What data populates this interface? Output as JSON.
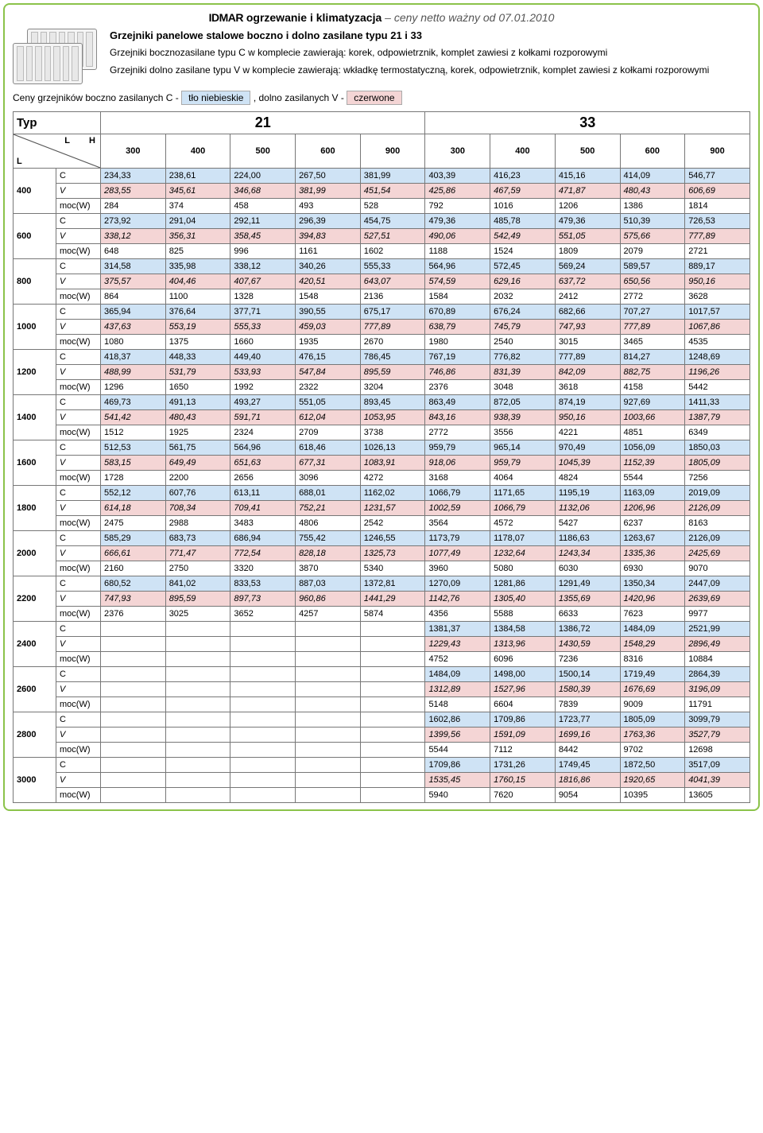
{
  "header": {
    "brand": "IDMAR",
    "subtitle": "ogrzewanie i klimatyzacja",
    "pricenote": "– ceny netto  ważny od 07.01.2010"
  },
  "intro": {
    "title": "Grzejniki panelowe stalowe boczno i dolno zasilane typu 21 i 33",
    "p1": "Grzejniki bocznozasilane typu C w komplecie zawierają: korek, odpowietrznik, komplet zawiesi z kołkami rozporowymi",
    "p2": "Grzejniki dolno zasilane typu V w komplecie zawierają: wkładkę termostatyczną, korek, odpowietrznik, komplet zawiesi z kołkami rozporowymi"
  },
  "legend": {
    "prefix": "Ceny grzejników boczno zasilanych C -",
    "blue": "tło niebieskie",
    "mid": ", dolno zasilanych V -",
    "red": "czerwone"
  },
  "table": {
    "TypLabel": "Typ",
    "group1": "21",
    "group2": "33",
    "LHlabel": {
      "L1": "L",
      "H": "H",
      "L2": "L"
    },
    "heights": [
      "300",
      "400",
      "500",
      "600",
      "900",
      "300",
      "400",
      "500",
      "600",
      "900"
    ],
    "rowlabels": {
      "C": "C",
      "V": "V",
      "M": "moc(W)"
    },
    "lengths": [
      "400",
      "600",
      "800",
      "1000",
      "1200",
      "1400",
      "1600",
      "1800",
      "2000",
      "2200",
      "2400",
      "2600",
      "2800",
      "3000"
    ],
    "rows": {
      "400": {
        "C": [
          "234,33",
          "238,61",
          "224,00",
          "267,50",
          "381,99",
          "403,39",
          "416,23",
          "415,16",
          "414,09",
          "546,77"
        ],
        "V": [
          "283,55",
          "345,61",
          "346,68",
          "381,99",
          "451,54",
          "425,86",
          "467,59",
          "471,87",
          "480,43",
          "606,69"
        ],
        "M": [
          "284",
          "374",
          "458",
          "493",
          "528",
          "792",
          "1016",
          "1206",
          "1386",
          "1814"
        ]
      },
      "600": {
        "C": [
          "273,92",
          "291,04",
          "292,11",
          "296,39",
          "454,75",
          "479,36",
          "485,78",
          "479,36",
          "510,39",
          "726,53"
        ],
        "V": [
          "338,12",
          "356,31",
          "358,45",
          "394,83",
          "527,51",
          "490,06",
          "542,49",
          "551,05",
          "575,66",
          "777,89"
        ],
        "M": [
          "648",
          "825",
          "996",
          "1161",
          "1602",
          "1188",
          "1524",
          "1809",
          "2079",
          "2721"
        ]
      },
      "800": {
        "C": [
          "314,58",
          "335,98",
          "338,12",
          "340,26",
          "555,33",
          "564,96",
          "572,45",
          "569,24",
          "589,57",
          "889,17"
        ],
        "V": [
          "375,57",
          "404,46",
          "407,67",
          "420,51",
          "643,07",
          "574,59",
          "629,16",
          "637,72",
          "650,56",
          "950,16"
        ],
        "M": [
          "864",
          "1100",
          "1328",
          "1548",
          "2136",
          "1584",
          "2032",
          "2412",
          "2772",
          "3628"
        ]
      },
      "1000": {
        "C": [
          "365,94",
          "376,64",
          "377,71",
          "390,55",
          "675,17",
          "670,89",
          "676,24",
          "682,66",
          "707,27",
          "1017,57"
        ],
        "V": [
          "437,63",
          "553,19",
          "555,33",
          "459,03",
          "777,89",
          "638,79",
          "745,79",
          "747,93",
          "777,89",
          "1067,86"
        ],
        "M": [
          "1080",
          "1375",
          "1660",
          "1935",
          "2670",
          "1980",
          "2540",
          "3015",
          "3465",
          "4535"
        ]
      },
      "1200": {
        "C": [
          "418,37",
          "448,33",
          "449,40",
          "476,15",
          "786,45",
          "767,19",
          "776,82",
          "777,89",
          "814,27",
          "1248,69"
        ],
        "V": [
          "488,99",
          "531,79",
          "533,93",
          "547,84",
          "895,59",
          "746,86",
          "831,39",
          "842,09",
          "882,75",
          "1196,26"
        ],
        "M": [
          "1296",
          "1650",
          "1992",
          "2322",
          "3204",
          "2376",
          "3048",
          "3618",
          "4158",
          "5442"
        ]
      },
      "1400": {
        "C": [
          "469,73",
          "491,13",
          "493,27",
          "551,05",
          "893,45",
          "863,49",
          "872,05",
          "874,19",
          "927,69",
          "1411,33"
        ],
        "V": [
          "541,42",
          "480,43",
          "591,71",
          "612,04",
          "1053,95",
          "843,16",
          "938,39",
          "950,16",
          "1003,66",
          "1387,79"
        ],
        "M": [
          "1512",
          "1925",
          "2324",
          "2709",
          "3738",
          "2772",
          "3556",
          "4221",
          "4851",
          "6349"
        ]
      },
      "1600": {
        "C": [
          "512,53",
          "561,75",
          "564,96",
          "618,46",
          "1026,13",
          "959,79",
          "965,14",
          "970,49",
          "1056,09",
          "1850,03"
        ],
        "V": [
          "583,15",
          "649,49",
          "651,63",
          "677,31",
          "1083,91",
          "918,06",
          "959,79",
          "1045,39",
          "1152,39",
          "1805,09"
        ],
        "M": [
          "1728",
          "2200",
          "2656",
          "3096",
          "4272",
          "3168",
          "4064",
          "4824",
          "5544",
          "7256"
        ]
      },
      "1800": {
        "C": [
          "552,12",
          "607,76",
          "613,11",
          "688,01",
          "1162,02",
          "1066,79",
          "1171,65",
          "1195,19",
          "1163,09",
          "2019,09"
        ],
        "V": [
          "614,18",
          "708,34",
          "709,41",
          "752,21",
          "1231,57",
          "1002,59",
          "1066,79",
          "1132,06",
          "1206,96",
          "2126,09"
        ],
        "M": [
          "2475",
          "2988",
          "3483",
          "4806",
          "2542",
          "3564",
          "4572",
          "5427",
          "6237",
          "8163"
        ]
      },
      "2000": {
        "C": [
          "585,29",
          "683,73",
          "686,94",
          "755,42",
          "1246,55",
          "1173,79",
          "1178,07",
          "1186,63",
          "1263,67",
          "2126,09"
        ],
        "V": [
          "666,61",
          "771,47",
          "772,54",
          "828,18",
          "1325,73",
          "1077,49",
          "1232,64",
          "1243,34",
          "1335,36",
          "2425,69"
        ],
        "M": [
          "2160",
          "2750",
          "3320",
          "3870",
          "5340",
          "3960",
          "5080",
          "6030",
          "6930",
          "9070"
        ]
      },
      "2200": {
        "C": [
          "680,52",
          "841,02",
          "833,53",
          "887,03",
          "1372,81",
          "1270,09",
          "1281,86",
          "1291,49",
          "1350,34",
          "2447,09"
        ],
        "V": [
          "747,93",
          "895,59",
          "897,73",
          "960,86",
          "1441,29",
          "1142,76",
          "1305,40",
          "1355,69",
          "1420,96",
          "2639,69"
        ],
        "M": [
          "2376",
          "3025",
          "3652",
          "4257",
          "5874",
          "4356",
          "5588",
          "6633",
          "7623",
          "9977"
        ]
      },
      "2400": {
        "C": [
          "",
          "",
          "",
          "",
          "",
          "1381,37",
          "1384,58",
          "1386,72",
          "1484,09",
          "2521,99"
        ],
        "V": [
          "",
          "",
          "",
          "",
          "",
          "1229,43",
          "1313,96",
          "1430,59",
          "1548,29",
          "2896,49"
        ],
        "M": [
          "",
          "",
          "",
          "",
          "",
          "4752",
          "6096",
          "7236",
          "8316",
          "10884"
        ]
      },
      "2600": {
        "C": [
          "",
          "",
          "",
          "",
          "",
          "1484,09",
          "1498,00",
          "1500,14",
          "1719,49",
          "2864,39"
        ],
        "V": [
          "",
          "",
          "",
          "",
          "",
          "1312,89",
          "1527,96",
          "1580,39",
          "1676,69",
          "3196,09"
        ],
        "M": [
          "",
          "",
          "",
          "",
          "",
          "5148",
          "6604",
          "7839",
          "9009",
          "11791"
        ]
      },
      "2800": {
        "C": [
          "",
          "",
          "",
          "",
          "",
          "1602,86",
          "1709,86",
          "1723,77",
          "1805,09",
          "3099,79"
        ],
        "V": [
          "",
          "",
          "",
          "",
          "",
          "1399,56",
          "1591,09",
          "1699,16",
          "1763,36",
          "3527,79"
        ],
        "M": [
          "",
          "",
          "",
          "",
          "",
          "5544",
          "7112",
          "8442",
          "9702",
          "12698"
        ]
      },
      "3000": {
        "C": [
          "",
          "",
          "",
          "",
          "",
          "1709,86",
          "1731,26",
          "1749,45",
          "1872,50",
          "3517,09"
        ],
        "V": [
          "",
          "",
          "",
          "",
          "",
          "1535,45",
          "1760,15",
          "1816,86",
          "1920,65",
          "4041,39"
        ],
        "M": [
          "",
          "",
          "",
          "",
          "",
          "5940",
          "7620",
          "9054",
          "10395",
          "13605"
        ]
      }
    }
  }
}
